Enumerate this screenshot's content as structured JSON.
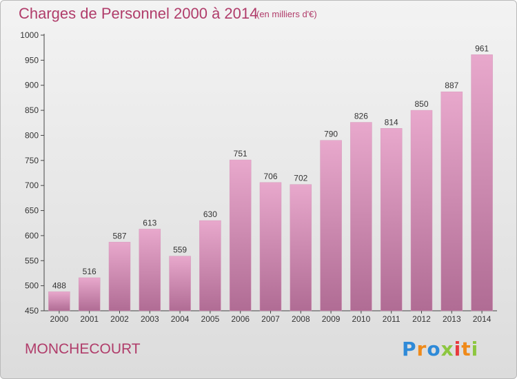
{
  "header": {
    "title": "Charges de Personnel 2000 à 2014",
    "subtitle": "(en milliers d'€)"
  },
  "footer": {
    "commune": "MONCHECOURT",
    "logo_parts": [
      {
        "char": "P",
        "color": "#2e8ad8"
      },
      {
        "char": "r",
        "color": "#ef8a1a"
      },
      {
        "char": "o",
        "color": "#2e8ad8"
      },
      {
        "char": "x",
        "color": "#8cc63f"
      },
      {
        "char": "i",
        "color": "#e8393d"
      },
      {
        "char": "t",
        "color": "#ef8a1a"
      },
      {
        "char": "i",
        "color": "#8cc63f"
      }
    ]
  },
  "colors": {
    "bar_top": "#e8a8cc",
    "bar_bottom": "#b06c94",
    "accent": "#b03c6a"
  },
  "chart_data": {
    "type": "bar",
    "title": "Charges de Personnel 2000 à 2014",
    "subtitle": "(en milliers d'€)",
    "categories": [
      "2000",
      "2001",
      "2002",
      "2003",
      "2004",
      "2005",
      "2006",
      "2007",
      "2008",
      "2009",
      "2010",
      "2011",
      "2012",
      "2013",
      "2014"
    ],
    "values": [
      488,
      516,
      587,
      613,
      559,
      630,
      751,
      706,
      702,
      790,
      826,
      814,
      850,
      887,
      961
    ],
    "ylim": [
      450,
      1000
    ],
    "yticks": [
      450,
      500,
      550,
      600,
      650,
      700,
      750,
      800,
      850,
      900,
      950,
      1000
    ],
    "grid": false,
    "show_value_labels": true
  }
}
